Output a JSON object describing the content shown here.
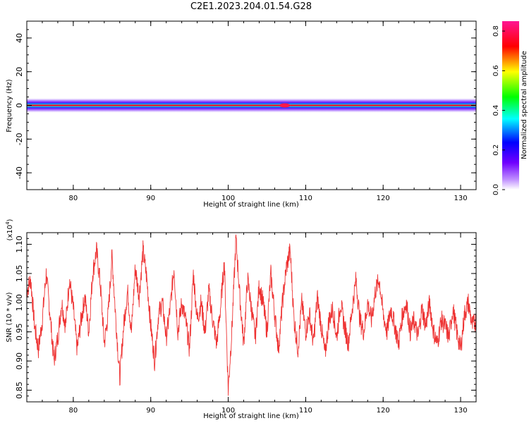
{
  "title": "C2E1.2023.204.01.54.G28",
  "colors": {
    "snr_line": "#ee3333",
    "axis": "#000000",
    "background": "#ffffff"
  },
  "chart_data": [
    {
      "type": "heatmap",
      "name": "spectrogram",
      "xlabel": "Height of straight line (km)",
      "ylabel": "Frequency (Hz)",
      "xlim": [
        74,
        132
      ],
      "ylim": [
        -50,
        50
      ],
      "xticks": [
        80,
        90,
        100,
        110,
        120,
        130
      ],
      "yticks": [
        -40,
        -20,
        0,
        20,
        40
      ],
      "band_center_hz": 0,
      "band_halfwidth_hz": 4.5,
      "discontinuity_km": 107.3,
      "colorbar": {
        "label": "Normalized spectral amplitude",
        "range": [
          0.0,
          0.85
        ],
        "ticks": [
          0.0,
          0.2,
          0.4,
          0.6,
          0.8
        ],
        "colormap": [
          "#ffffff",
          "#7a00ff",
          "#0000ff",
          "#00ffff",
          "#00ff00",
          "#ffff00",
          "#ff0000",
          "#ff1493"
        ]
      }
    },
    {
      "type": "line",
      "name": "snr",
      "xlabel": "Height of straight line (km)",
      "ylabel": "SNR (10 * v/v)",
      "yscale_label": "(x10",
      "yscale_exp": "4",
      "yscale_close": ")",
      "xlim": [
        74,
        132
      ],
      "ylim": [
        0.83,
        1.12
      ],
      "xticks": [
        80,
        90,
        100,
        110,
        120,
        130
      ],
      "yticks": [
        0.85,
        0.9,
        0.95,
        1.0,
        1.05,
        1.1
      ],
      "ytick_labels": [
        "0.85",
        "0.90",
        "0.95",
        "1.00",
        "1.05",
        "1.10"
      ],
      "series": [
        {
          "x": [
            74.0,
            74.5,
            75.0,
            75.5,
            76.0,
            76.5,
            77.0,
            77.5,
            78.0,
            78.5,
            79.0,
            79.5,
            80.0,
            80.5,
            81.0,
            81.5,
            82.0,
            82.5,
            83.0,
            83.5,
            84.0,
            84.5,
            85.0,
            85.5,
            86.0,
            86.5,
            87.0,
            87.5,
            88.0,
            88.5,
            89.0,
            89.5,
            90.0,
            90.5,
            91.0,
            91.5,
            92.0,
            92.5,
            93.0,
            93.5,
            94.0,
            94.5,
            95.0,
            95.5,
            96.0,
            96.5,
            97.0,
            97.5,
            98.0,
            98.5,
            99.0,
            99.5,
            100.0,
            100.5,
            101.0,
            101.5,
            102.0,
            102.5,
            103.0,
            103.5,
            104.0,
            104.5,
            105.0,
            105.5,
            106.0,
            106.5,
            107.0,
            107.5,
            108.0,
            108.5,
            109.0,
            109.5,
            110.0,
            110.5,
            111.0,
            111.5,
            112.0,
            112.5,
            113.0,
            113.5,
            114.0,
            114.5,
            115.0,
            115.5,
            116.0,
            116.5,
            117.0,
            117.5,
            118.0,
            118.5,
            119.0,
            119.5,
            120.0,
            120.5,
            121.0,
            121.5,
            122.0,
            122.5,
            123.0,
            123.5,
            124.0,
            124.5,
            125.0,
            125.5,
            126.0,
            126.5,
            127.0,
            127.5,
            128.0,
            128.5,
            129.0,
            129.5,
            130.0,
            130.5,
            131.0,
            131.5,
            132.0
          ],
          "y": [
            1.02,
            1.04,
            0.96,
            0.92,
            0.97,
            1.05,
            0.98,
            0.9,
            0.94,
            1.0,
            0.96,
            1.04,
            0.99,
            0.92,
            0.97,
            1.01,
            0.95,
            1.05,
            1.09,
            1.03,
            0.93,
            0.98,
            1.08,
            0.97,
            0.87,
            0.96,
            1.02,
            0.95,
            1.06,
            1.01,
            1.09,
            1.04,
            0.96,
            0.9,
            0.98,
            1.0,
            0.94,
            0.99,
            1.06,
            0.95,
            1.0,
            0.97,
            0.92,
            1.05,
            0.97,
            1.0,
            0.95,
            1.02,
            0.97,
            0.93,
            0.99,
            1.07,
            0.85,
            0.96,
            1.11,
            1.01,
            0.93,
            1.04,
            0.99,
            0.94,
            1.03,
            1.0,
            0.95,
            1.05,
            0.98,
            0.92,
            1.0,
            1.06,
            1.09,
            0.97,
            0.92,
            1.0,
            0.95,
            0.98,
            0.93,
            1.01,
            0.96,
            0.91,
            0.97,
            0.99,
            0.94,
            1.0,
            0.96,
            0.93,
            0.99,
            1.04,
            0.97,
            0.95,
            1.0,
            0.97,
            1.02,
            1.04,
            0.98,
            0.95,
            0.99,
            0.96,
            0.93,
            0.98,
            1.0,
            0.95,
            0.97,
            0.94,
            0.99,
            0.96,
            1.0,
            0.95,
            0.93,
            0.97,
            0.96,
            0.94,
            0.99,
            0.95,
            0.92,
            0.98,
            1.0,
            0.96,
            0.97
          ]
        }
      ]
    }
  ]
}
